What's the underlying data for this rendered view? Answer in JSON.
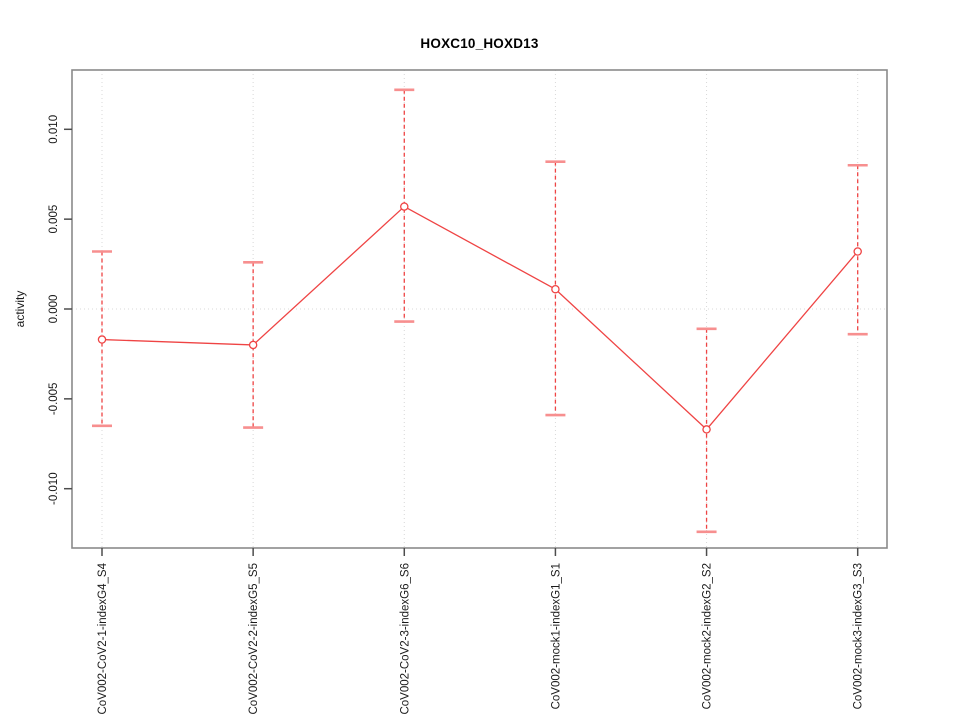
{
  "chart_data": {
    "type": "line",
    "title": "HOXC10_HOXD13",
    "ylabel": "activity",
    "xlabel": "",
    "categories": [
      "CoV002-CoV2-1-indexG4_S4",
      "CoV002-CoV2-2-indexG5_S5",
      "CoV002-CoV2-3-indexG6_S6",
      "CoV002-mock1-indexG1_S1",
      "CoV002-mock2-indexG2_S2",
      "CoV002-mock3-indexG3_S3"
    ],
    "series": [
      {
        "name": "activity",
        "values": [
          -0.0017,
          -0.002,
          0.0057,
          0.0011,
          -0.0067,
          0.0032
        ],
        "upper": [
          0.0032,
          0.0026,
          0.0122,
          0.0082,
          -0.0011,
          0.008
        ],
        "lower": [
          -0.0065,
          -0.0066,
          -0.0007,
          -0.0059,
          -0.0124,
          -0.0014
        ]
      }
    ],
    "ylim": [
      -0.0133,
      0.0133
    ],
    "yticks": [
      -0.01,
      -0.005,
      0.0,
      0.005,
      0.01
    ],
    "ytick_labels": [
      "-0.010",
      "-0.005",
      "0.000",
      "0.005",
      "0.010"
    ],
    "reference_line_y": 0,
    "legend": "none",
    "marker": "open-circle",
    "error_bar_line_style": "dashed",
    "grid": "vertical-dotted-per-category-plus-dotted-zero-line",
    "colors": {
      "series": "#ef4444",
      "cap": "#f78f8f",
      "grid": "#d8d8d8",
      "box": "#8a8a8a",
      "tick": "#4d4d4d",
      "text": "#1a1a1a"
    }
  }
}
